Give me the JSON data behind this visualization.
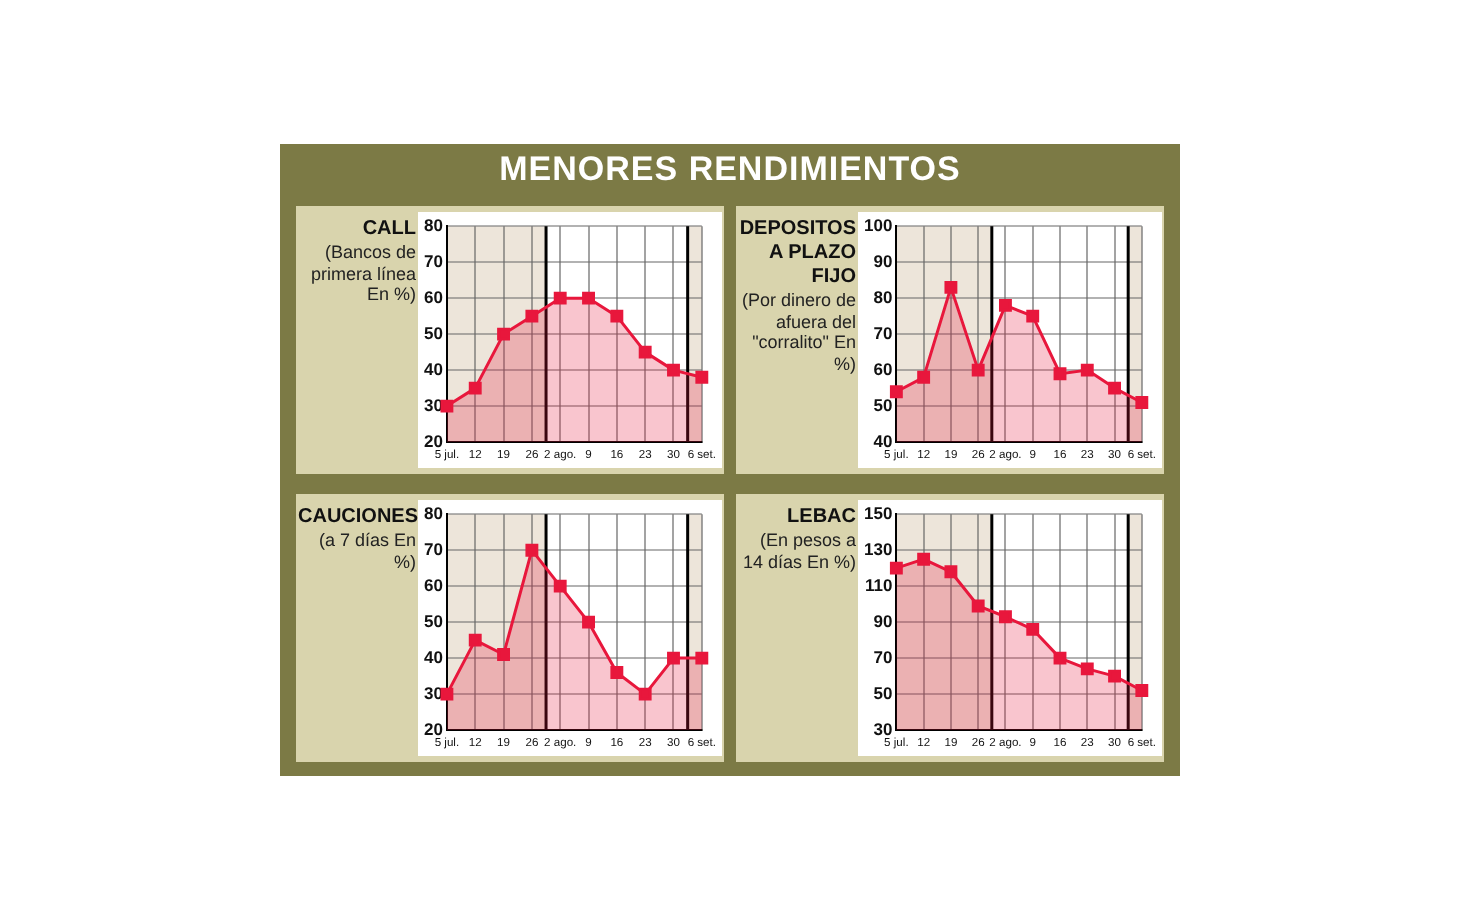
{
  "chart_data": [
    {
      "type": "area",
      "title": "CALL",
      "subtitle": "(Bancos de primera línea En %)",
      "annotations": [
        "MENORES RENDIMIENTOS"
      ],
      "categories": [
        "5 jul.",
        "12",
        "19",
        "26",
        "2 ago.",
        "9",
        "16",
        "23",
        "30",
        "6 set."
      ],
      "series": [
        {
          "color": "#e8173c",
          "values": [
            30,
            35,
            50,
            55,
            60,
            60,
            55,
            45,
            40,
            38
          ]
        }
      ],
      "ylim": [
        20,
        80
      ],
      "yticks": [
        20,
        30,
        40,
        50,
        60,
        70,
        80
      ],
      "grid": true,
      "marker": "square",
      "bands": [
        {
          "axis": "x",
          "from": "5 jul.",
          "to": "26",
          "color": "#ede5da"
        },
        {
          "axis": "x",
          "from": "6 set.",
          "to": "6 set.",
          "color": "#ede5da"
        }
      ]
    },
    {
      "type": "area",
      "title": "DEPOSITOS A PLAZO FIJO",
      "subtitle": "(Por dinero de afuera del \"corralito\" En %)",
      "categories": [
        "5 jul.",
        "12",
        "19",
        "26",
        "2 ago.",
        "9",
        "16",
        "23",
        "30",
        "6 set."
      ],
      "series": [
        {
          "color": "#e8173c",
          "values": [
            54,
            58,
            83,
            60,
            78,
            75,
            59,
            60,
            55,
            51
          ]
        }
      ],
      "ylim": [
        40,
        100
      ],
      "yticks": [
        40,
        50,
        60,
        70,
        80,
        90,
        100
      ],
      "grid": true,
      "marker": "square",
      "bands": [
        {
          "axis": "x",
          "from": "5 jul.",
          "to": "26",
          "color": "#ede5da"
        },
        {
          "axis": "x",
          "from": "6 set.",
          "to": "6 set.",
          "color": "#ede5da"
        }
      ]
    },
    {
      "type": "area",
      "title": "CAUCIONES",
      "subtitle": "(a 7 días En %)",
      "categories": [
        "5 jul.",
        "12",
        "19",
        "26",
        "2 ago.",
        "9",
        "16",
        "23",
        "30",
        "6 set."
      ],
      "series": [
        {
          "color": "#e8173c",
          "values": [
            30,
            45,
            41,
            70,
            60,
            50,
            36,
            30,
            40,
            40
          ]
        }
      ],
      "ylim": [
        20,
        80
      ],
      "yticks": [
        20,
        30,
        40,
        50,
        60,
        70,
        80
      ],
      "grid": true,
      "marker": "square",
      "bands": [
        {
          "axis": "x",
          "from": "5 jul.",
          "to": "26",
          "color": "#ede5da"
        },
        {
          "axis": "x",
          "from": "6 set.",
          "to": "6 set.",
          "color": "#ede5da"
        }
      ]
    },
    {
      "type": "area",
      "title": "LEBAC",
      "subtitle": "(En pesos a 14 días En %)",
      "categories": [
        "5 jul.",
        "12",
        "19",
        "26",
        "2 ago.",
        "9",
        "16",
        "23",
        "30",
        "6 set."
      ],
      "series": [
        {
          "color": "#e8173c",
          "values": [
            120,
            125,
            118,
            99,
            93,
            86,
            70,
            64,
            60,
            52
          ]
        }
      ],
      "ylim": [
        30,
        150
      ],
      "yticks": [
        30,
        50,
        70,
        90,
        110,
        130,
        150
      ],
      "grid": true,
      "marker": "square",
      "bands": [
        {
          "axis": "x",
          "from": "5 jul.",
          "to": "26",
          "color": "#ede5da"
        },
        {
          "axis": "x",
          "from": "6 set.",
          "to": "6 set.",
          "color": "#ede5da"
        }
      ]
    }
  ]
}
